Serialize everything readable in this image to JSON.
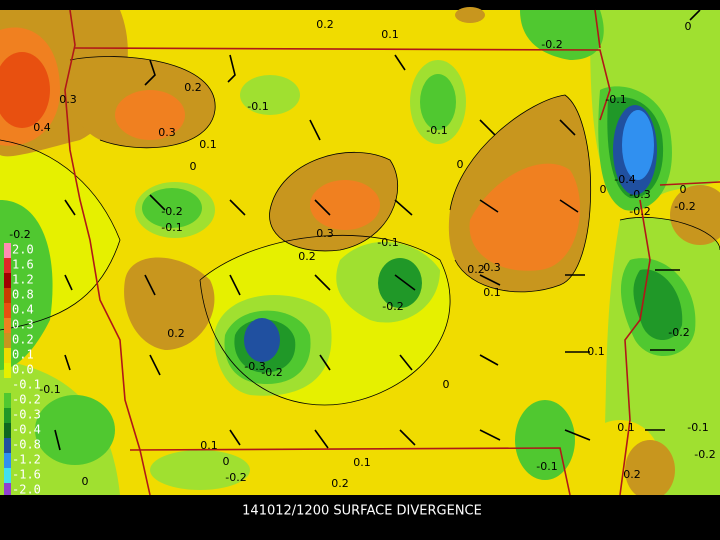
{
  "caption": "141012/1200 SURFACE DIVERGENCE",
  "legend": [
    {
      "label": "2.0",
      "color": "#ff8cb4"
    },
    {
      "label": "1.6",
      "color": "#e02828"
    },
    {
      "label": "1.2",
      "color": "#a00000"
    },
    {
      "label": "0.8",
      "color": "#c83c00"
    },
    {
      "label": "0.4",
      "color": "#e85010"
    },
    {
      "label": "0.3",
      "color": "#f08020"
    },
    {
      "label": "0.2",
      "color": "#c8961e"
    },
    {
      "label": "0.1",
      "color": "#f0dc00"
    },
    {
      "label": "0.0",
      "color": "#e6f000"
    },
    {
      "label": "-0.1",
      "color": "#a0e030"
    },
    {
      "label": "-0.2",
      "color": "#50c830"
    },
    {
      "label": "-0.3",
      "color": "#209828"
    },
    {
      "label": "-0.4",
      "color": "#106820"
    },
    {
      "label": "-0.8",
      "color": "#2050a0"
    },
    {
      "label": "-1.2",
      "color": "#3090f0"
    },
    {
      "label": "-1.6",
      "color": "#40e0f0"
    },
    {
      "label": "-2.0",
      "color": "#9040d0"
    }
  ],
  "contour_labels": [
    "0.2",
    "0.1",
    "-0.2",
    "0",
    "0.3",
    "0.4",
    "0.2",
    "0.3",
    "-0.1",
    "0.1",
    "0",
    "-0.1",
    "0",
    "-0.1",
    "0",
    "-0.4",
    "-0.3",
    "0",
    "-0.2",
    "-0.2",
    "-0.2",
    "-0.1",
    "0.3",
    "0.2",
    "-0.1",
    "-0.2",
    "0.2",
    "0.3",
    "0.1",
    "-0.2",
    "0.2",
    "-0.3",
    "-0.2",
    "-0.1",
    "0",
    "0.1",
    "-0.2",
    "0.1",
    "0",
    "0.1",
    "-0.1",
    "0.1",
    "-0.1",
    "-0.2",
    "-0.2",
    "0",
    "0.2",
    "0.2"
  ]
}
